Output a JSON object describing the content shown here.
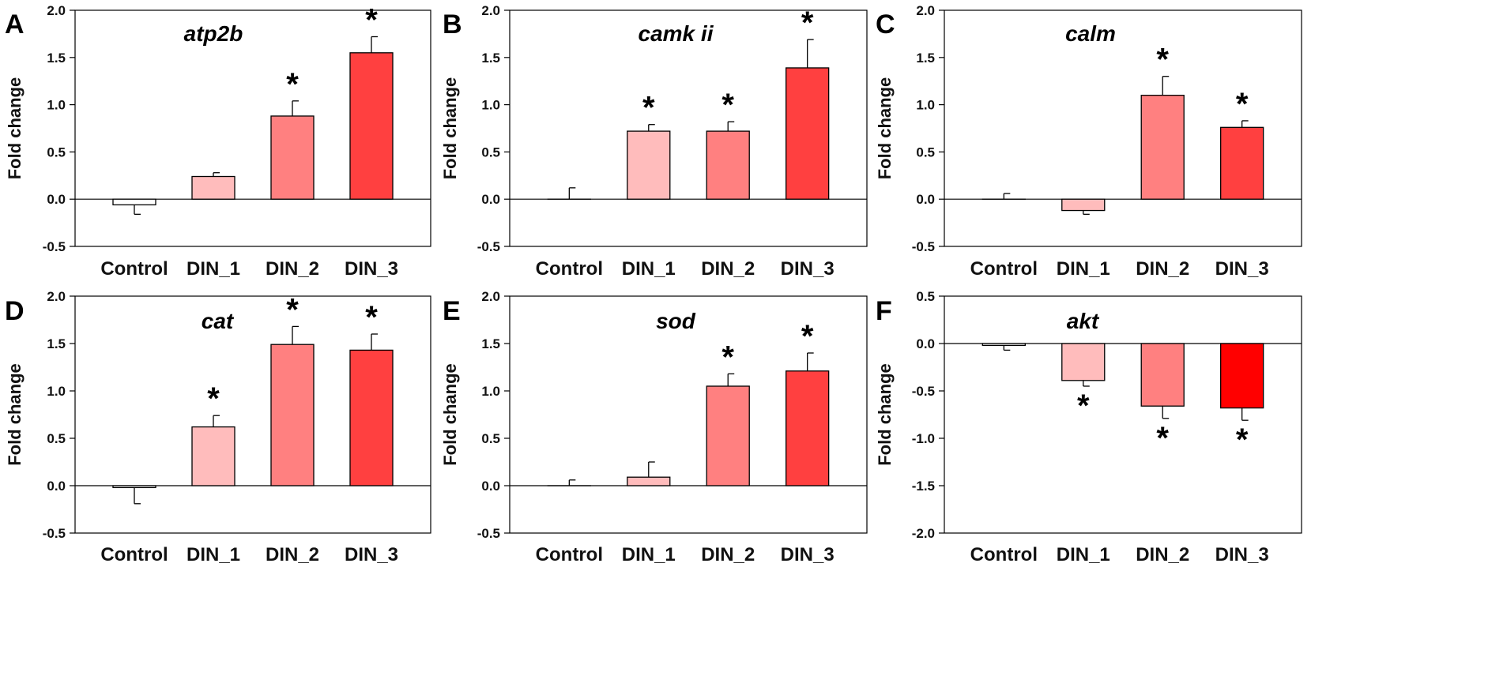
{
  "figure": {
    "categories": [
      "Control",
      "DIN_1",
      "DIN_2",
      "DIN_3"
    ],
    "ylabel": "Fold change",
    "colors": [
      "#ffd5d5",
      "#ffbcbc",
      "#ff8080",
      "#ff4040"
    ],
    "akt_colors": [
      "#ffd5d5",
      "#ffbcbc",
      "#ff8080",
      "#ff0000"
    ]
  },
  "chart_data": [
    {
      "type": "bar",
      "panel": "A",
      "title": "atp2b",
      "categories": [
        "Control",
        "DIN_1",
        "DIN_2",
        "DIN_3"
      ],
      "values": [
        -0.06,
        0.24,
        0.88,
        1.55
      ],
      "errors": [
        0.1,
        0.04,
        0.16,
        0.17
      ],
      "significant": [
        false,
        false,
        true,
        true
      ],
      "ylabel": "Fold change",
      "ylim": [
        -0.5,
        2.0
      ],
      "yticks": [
        "-0.5",
        "0.0",
        "0.5",
        "1.0",
        "1.5",
        "2.0"
      ]
    },
    {
      "type": "bar",
      "panel": "B",
      "title": "camk ii",
      "categories": [
        "Control",
        "DIN_1",
        "DIN_2",
        "DIN_3"
      ],
      "values": [
        0.0,
        0.72,
        0.72,
        1.39
      ],
      "errors": [
        0.12,
        0.07,
        0.1,
        0.3
      ],
      "significant": [
        false,
        true,
        true,
        true
      ],
      "ylabel": "Fold change",
      "ylim": [
        -0.5,
        2.0
      ],
      "yticks": [
        "-0.5",
        "0.0",
        "0.5",
        "1.0",
        "1.5",
        "2.0"
      ]
    },
    {
      "type": "bar",
      "panel": "C",
      "title": "calm",
      "categories": [
        "Control",
        "DIN_1",
        "DIN_2",
        "DIN_3"
      ],
      "values": [
        0.0,
        -0.12,
        1.1,
        0.76
      ],
      "errors": [
        0.06,
        0.04,
        0.2,
        0.07
      ],
      "significant": [
        false,
        false,
        true,
        true
      ],
      "ylabel": "Fold change",
      "ylim": [
        -0.5,
        2.0
      ],
      "yticks": [
        "-0.5",
        "0.0",
        "0.5",
        "1.0",
        "1.5",
        "2.0"
      ]
    },
    {
      "type": "bar",
      "panel": "D",
      "title": "cat",
      "categories": [
        "Control",
        "DIN_1",
        "DIN_2",
        "DIN_3"
      ],
      "values": [
        -0.02,
        0.62,
        1.49,
        1.43
      ],
      "errors": [
        0.17,
        0.12,
        0.19,
        0.17
      ],
      "significant": [
        false,
        true,
        true,
        true
      ],
      "ylabel": "Fold change",
      "ylim": [
        -0.5,
        2.0
      ],
      "yticks": [
        "-0.5",
        "0.0",
        "0.5",
        "1.0",
        "1.5",
        "2.0"
      ]
    },
    {
      "type": "bar",
      "panel": "E",
      "title": "sod",
      "categories": [
        "Control",
        "DIN_1",
        "DIN_2",
        "DIN_3"
      ],
      "values": [
        0.0,
        0.09,
        1.05,
        1.21
      ],
      "errors": [
        0.06,
        0.16,
        0.13,
        0.19
      ],
      "significant": [
        false,
        false,
        true,
        true
      ],
      "ylabel": "Fold change",
      "ylim": [
        -0.5,
        2.0
      ],
      "yticks": [
        "-0.5",
        "0.0",
        "0.5",
        "1.0",
        "1.5",
        "2.0"
      ]
    },
    {
      "type": "bar",
      "panel": "F",
      "title": "akt",
      "categories": [
        "Control",
        "DIN_1",
        "DIN_2",
        "DIN_3"
      ],
      "values": [
        -0.02,
        -0.39,
        -0.66,
        -0.68
      ],
      "errors": [
        0.05,
        0.06,
        0.13,
        0.13
      ],
      "significant": [
        false,
        true,
        true,
        true
      ],
      "ylabel": "Fold change",
      "ylim": [
        -2.0,
        0.5
      ],
      "yticks": [
        "-2.0",
        "-1.5",
        "-1.0",
        "-0.5",
        "0.0",
        "0.5"
      ]
    }
  ]
}
